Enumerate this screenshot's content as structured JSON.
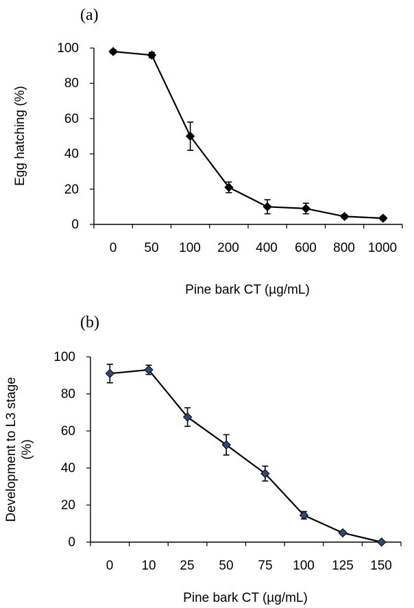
{
  "chart_data": [
    {
      "type": "line",
      "panel_label": "(a)",
      "categories": [
        "0",
        "50",
        "100",
        "200",
        "400",
        "600",
        "800",
        "1000"
      ],
      "series": [
        {
          "values": [
            98,
            96,
            50,
            21,
            10,
            9,
            4.5,
            3.5
          ],
          "errors": [
            1,
            1.5,
            8,
            3,
            4,
            3,
            1,
            1
          ],
          "color": "#000000",
          "marker": "diamond",
          "marker_fill": "#000000"
        }
      ],
      "xlabel": "Pine bark CT (µg/mL)",
      "ylabel": "Egg hatching (%)",
      "ylim": [
        0,
        100
      ],
      "yticks": [
        "0",
        "20",
        "40",
        "60",
        "80",
        "100"
      ],
      "grid": false,
      "error_bars": true
    },
    {
      "type": "line",
      "panel_label": "(b)",
      "categories": [
        "0",
        "10",
        "25",
        "50",
        "75",
        "100",
        "125",
        "150"
      ],
      "series": [
        {
          "values": [
            91,
            93,
            67.5,
            52.5,
            37,
            14.5,
            5,
            0
          ],
          "errors": [
            5,
            2.5,
            5,
            5.5,
            4,
            2,
            0.8,
            0.5
          ],
          "color": "#000000",
          "marker": "diamond",
          "marker_fill": "#2e4a7a"
        }
      ],
      "xlabel": "Pine bark CT (µg/mL)",
      "ylabel_lines": [
        "Development to L3 stage",
        "(%)"
      ],
      "ylim": [
        0,
        100
      ],
      "yticks": [
        "0",
        "20",
        "40",
        "60",
        "80",
        "100"
      ],
      "grid": false,
      "error_bars": true
    }
  ]
}
